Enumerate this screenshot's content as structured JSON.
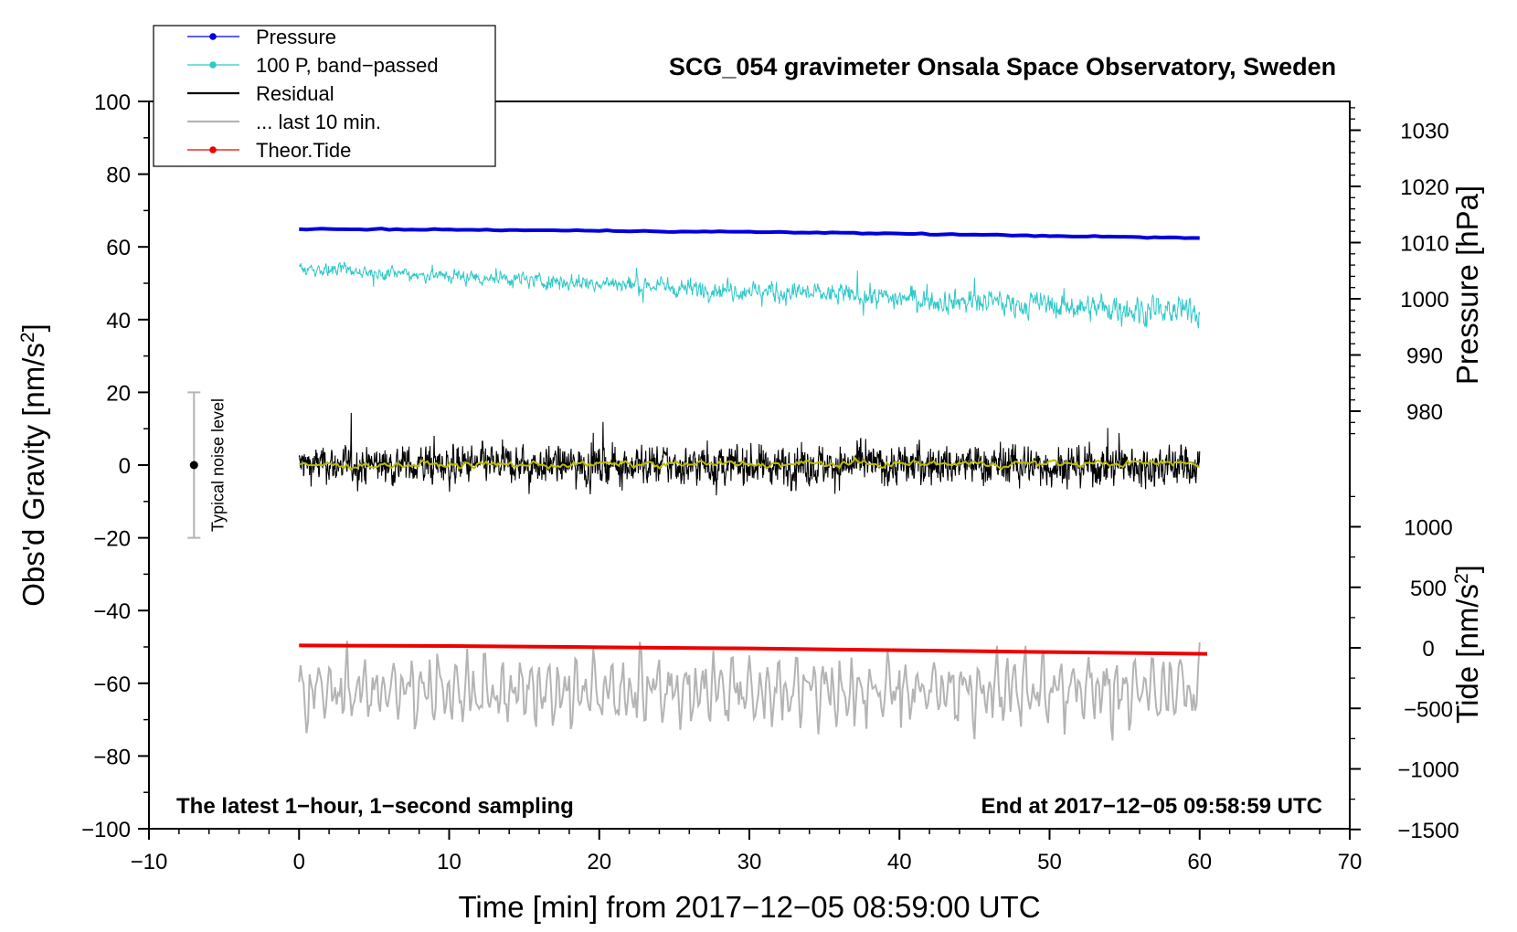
{
  "chart_data": {
    "type": "line",
    "title": "SCG_054 gravimeter Onsala Space Observatory, Sweden",
    "xlabel": "Time [min] from 2017−12−05 08:59:00 UTC",
    "ylabel_left_main": "Obs'd Gravity [nm/s",
    "ylabel_left_sup": "2",
    "ylabel_left_end": "]",
    "ylabel_right_pressure": "Pressure [hPa]",
    "ylabel_right_tide_main": "Tide [nm/s",
    "ylabel_right_tide_sup": "2",
    "ylabel_right_tide_end": "]",
    "xlim": [
      -10,
      70
    ],
    "ylim": [
      -100,
      100
    ],
    "pressure_axis_ticks": [
      980,
      990,
      1000,
      1010,
      1020,
      1030
    ],
    "tide_axis_ticks": [
      1000,
      500,
      0,
      -500,
      -1000,
      -1500
    ],
    "x_ticks": [
      "−10",
      "0",
      "10",
      "20",
      "30",
      "40",
      "50",
      "60",
      "70"
    ],
    "y_ticks": [
      "100",
      "80",
      "60",
      "40",
      "20",
      "0",
      "−20",
      "−40",
      "−60",
      "−80",
      "−100"
    ],
    "pressure_tick_labels": [
      "980",
      "990",
      "1000",
      "1010",
      "1020",
      "1030"
    ],
    "tide_tick_labels": [
      "1000",
      "500",
      "0",
      "−500",
      "−1000",
      "−1500"
    ],
    "legend": [
      {
        "label": "Pressure",
        "color": "#0000dd",
        "marker": "dot"
      },
      {
        "label": "100 P, band−passed",
        "color": "#30c8c8",
        "marker": "dot"
      },
      {
        "label": "Residual",
        "color": "#000000",
        "marker": "none"
      },
      {
        "label": "... last 10 min.",
        "color": "#b4b4b4",
        "marker": "none"
      },
      {
        "label": "Theor.Tide",
        "color": "#ee0000",
        "marker": "dot"
      }
    ],
    "legend_position": "top-left",
    "series": [
      {
        "name": "Pressure",
        "axis": "pressure_hPa",
        "x": [
          0,
          10,
          20,
          30,
          40,
          50,
          60
        ],
        "y": [
          1012.4,
          1012.3,
          1012.1,
          1011.9,
          1011.6,
          1011.2,
          1010.8
        ]
      },
      {
        "name": "100 P, band−passed",
        "axis": "gravity",
        "x": [
          0,
          60
        ],
        "mean": [
          54,
          42
        ],
        "amplitude": [
          3,
          7
        ]
      },
      {
        "name": "Residual",
        "axis": "gravity",
        "x": [
          0,
          60
        ],
        "mean": [
          0,
          0
        ],
        "amplitude": [
          9,
          10
        ]
      },
      {
        "name": "smoothed residual",
        "axis": "gravity",
        "x": [
          0,
          60
        ],
        "mean": [
          0,
          0.5
        ],
        "amplitude": [
          1,
          1
        ]
      },
      {
        "name": "... last 10 min.",
        "axis": "gravity",
        "x": [
          0,
          60
        ],
        "mean": [
          -62,
          -62
        ],
        "amplitude": [
          9,
          9
        ]
      },
      {
        "name": "Theor.Tide",
        "axis": "tide_nm_s2",
        "x": [
          0,
          10,
          20,
          30,
          40,
          50,
          60.5
        ],
        "y": [
          20,
          15,
          5,
          -5,
          -20,
          -35,
          -50
        ]
      }
    ],
    "colors": {
      "smoothed_residual": "#bbbb00",
      "noise_bar": "#b4b4b4"
    },
    "noise_indicator": {
      "label": "Typical noise level",
      "x": -7,
      "y": 0,
      "range": [
        -20,
        20
      ]
    },
    "annotations": {
      "bottom_left": "The latest 1−hour, 1−second sampling",
      "bottom_right": "End at 2017−12−05 09:58:59 UTC"
    }
  }
}
